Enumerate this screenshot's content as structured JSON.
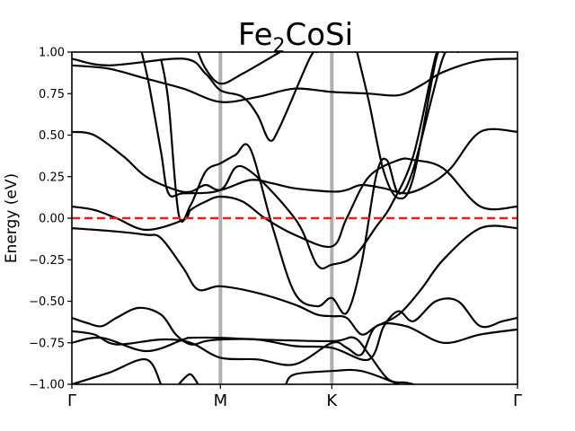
{
  "chart_data": {
    "type": "line",
    "title_main": "Fe",
    "title_sub": "2",
    "title_rest": "CoSi",
    "xlabel": "",
    "ylabel": "Energy (eV)",
    "ylim": [
      -1.0,
      1.0
    ],
    "xlim": [
      0,
      3.0
    ],
    "y_ticks": [
      -1.0,
      -0.75,
      -0.5,
      -0.25,
      0.0,
      0.25,
      0.5,
      0.75,
      1.0
    ],
    "y_tick_labels": [
      "−1.00",
      "−0.75",
      "−0.50",
      "−0.25",
      "0.00",
      "0.25",
      "0.50",
      "0.75",
      "1.00"
    ],
    "x_ticks": [
      {
        "pos": 0.0,
        "label": "Γ"
      },
      {
        "pos": 1.0,
        "label": "M"
      },
      {
        "pos": 1.75,
        "label": "K"
      },
      {
        "pos": 3.0,
        "label": "Γ"
      }
    ],
    "fermi_level": 0.0,
    "colors": {
      "bands": "#000000",
      "fermi": "#e8201c",
      "symmetry_lines": "#b0b0b0"
    },
    "series": [
      {
        "name": "band-1",
        "points": [
          [
            0,
            -1.0
          ],
          [
            0.25,
            -0.93
          ],
          [
            0.5,
            -0.85
          ],
          [
            0.6,
            -1.0
          ]
        ]
      },
      {
        "name": "band-2",
        "points": [
          [
            0.72,
            -1.0
          ],
          [
            0.75,
            -0.97
          ],
          [
            0.8,
            -0.94
          ],
          [
            0.85,
            -1.0
          ]
        ]
      },
      {
        "name": "band-3",
        "points": [
          [
            1.44,
            -1.0
          ],
          [
            1.5,
            -0.94
          ],
          [
            1.75,
            -0.92
          ],
          [
            1.95,
            -0.92
          ],
          [
            2.2,
            -1.0
          ]
        ]
      },
      {
        "name": "band-4",
        "points": [
          [
            0,
            -0.75
          ],
          [
            0.2,
            -0.72
          ],
          [
            0.5,
            -0.8
          ],
          [
            0.75,
            -0.73
          ],
          [
            0.8,
            -0.72
          ],
          [
            1.0,
            -0.72
          ],
          [
            1.25,
            -0.73
          ],
          [
            1.75,
            -0.74
          ],
          [
            1.9,
            -0.72
          ],
          [
            2.0,
            -0.82
          ],
          [
            2.13,
            -0.97
          ],
          [
            2.25,
            -0.99
          ],
          [
            2.3,
            -1.0
          ]
        ]
      },
      {
        "name": "band-5",
        "points": [
          [
            0,
            -0.68
          ],
          [
            0.15,
            -0.7
          ],
          [
            0.3,
            -0.76
          ],
          [
            0.6,
            -0.73
          ],
          [
            0.8,
            -0.75
          ],
          [
            1.0,
            -0.84
          ],
          [
            1.25,
            -0.85
          ],
          [
            1.5,
            -0.88
          ],
          [
            1.75,
            -0.75
          ],
          [
            1.85,
            -0.78
          ],
          [
            1.95,
            -0.82
          ],
          [
            2.05,
            -0.65
          ],
          [
            2.25,
            -0.65
          ],
          [
            2.5,
            -0.75
          ],
          [
            2.75,
            -0.7
          ],
          [
            3.0,
            -0.67
          ]
        ]
      },
      {
        "name": "band-6",
        "points": [
          [
            0,
            -0.6
          ],
          [
            0.1,
            -0.63
          ],
          [
            0.2,
            -0.65
          ],
          [
            0.3,
            -0.6
          ],
          [
            0.45,
            -0.54
          ],
          [
            0.6,
            -0.58
          ],
          [
            0.7,
            -0.7
          ],
          [
            0.8,
            -0.76
          ],
          [
            0.9,
            -0.74
          ],
          [
            1.0,
            -0.73
          ],
          [
            1.25,
            -0.73
          ],
          [
            1.5,
            -0.77
          ],
          [
            1.75,
            -0.78
          ],
          [
            2.0,
            -0.85
          ],
          [
            2.1,
            -0.65
          ],
          [
            2.2,
            -0.56
          ],
          [
            2.3,
            -0.62
          ],
          [
            2.45,
            -0.5
          ],
          [
            2.6,
            -0.5
          ],
          [
            2.75,
            -0.65
          ],
          [
            2.9,
            -0.62
          ],
          [
            3.0,
            -0.6
          ]
        ]
      },
      {
        "name": "band-7",
        "points": [
          [
            0,
            -0.06
          ],
          [
            0.3,
            -0.08
          ],
          [
            0.5,
            -0.1
          ],
          [
            0.6,
            -0.12
          ],
          [
            0.75,
            -0.3
          ],
          [
            0.85,
            -0.43
          ],
          [
            1.0,
            -0.41
          ],
          [
            1.25,
            -0.45
          ],
          [
            1.5,
            -0.52
          ],
          [
            1.65,
            -0.58
          ],
          [
            1.75,
            -0.59
          ],
          [
            1.85,
            -0.6
          ],
          [
            1.95,
            -0.7
          ],
          [
            2.05,
            -0.65
          ],
          [
            2.2,
            -0.58
          ],
          [
            2.35,
            -0.43
          ],
          [
            2.5,
            -0.25
          ],
          [
            2.75,
            -0.06
          ],
          [
            3.0,
            -0.06
          ]
        ]
      },
      {
        "name": "band-8",
        "points": [
          [
            0,
            0.07
          ],
          [
            0.15,
            0.05
          ],
          [
            0.3,
            0.0
          ],
          [
            0.5,
            -0.07
          ],
          [
            0.75,
            -0.01
          ],
          [
            0.8,
            0.05
          ],
          [
            0.9,
            0.1
          ],
          [
            1.0,
            0.13
          ],
          [
            1.15,
            0.1
          ],
          [
            1.3,
            0.0
          ],
          [
            1.5,
            -0.1
          ],
          [
            1.75,
            -0.17
          ],
          [
            1.85,
            0.0
          ],
          [
            2.0,
            0.25
          ],
          [
            2.2,
            0.35
          ],
          [
            2.3,
            0.35
          ],
          [
            2.5,
            0.3
          ],
          [
            2.75,
            0.07
          ],
          [
            3.0,
            0.07
          ]
        ]
      },
      {
        "name": "band-9",
        "points": [
          [
            0,
            0.52
          ],
          [
            0.15,
            0.5
          ],
          [
            0.35,
            0.37
          ],
          [
            0.5,
            0.25
          ],
          [
            0.7,
            0.17
          ],
          [
            0.8,
            0.16
          ],
          [
            0.9,
            0.2
          ],
          [
            1.0,
            0.17
          ],
          [
            1.2,
            0.23
          ],
          [
            1.35,
            0.21
          ],
          [
            1.5,
            0.18
          ],
          [
            1.75,
            0.16
          ],
          [
            1.85,
            0.17
          ],
          [
            1.95,
            0.2
          ],
          [
            2.1,
            0.18
          ],
          [
            2.25,
            0.15
          ],
          [
            2.4,
            0.2
          ],
          [
            2.55,
            0.3
          ],
          [
            2.75,
            0.52
          ],
          [
            3.0,
            0.52
          ]
        ]
      },
      {
        "name": "band-10",
        "points": [
          [
            0.47,
            1.0
          ],
          [
            0.52,
            0.8
          ],
          [
            0.6,
            0.4
          ],
          [
            0.65,
            0.15
          ],
          [
            0.75,
            0.15
          ],
          [
            1.0,
            0.17
          ],
          [
            1.15,
            0.31
          ],
          [
            1.5,
            0.0
          ],
          [
            1.65,
            -0.28
          ],
          [
            1.75,
            -0.28
          ],
          [
            1.9,
            -0.23
          ],
          [
            2.05,
            -0.05
          ],
          [
            2.15,
            0.08
          ],
          [
            2.3,
            0.38
          ],
          [
            2.45,
            0.98
          ],
          [
            2.5,
            1.0
          ]
        ]
      },
      {
        "name": "band-11",
        "points": [
          [
            0.85,
            1.0
          ],
          [
            0.9,
            0.9
          ],
          [
            1.0,
            0.81
          ],
          [
            1.15,
            0.87
          ],
          [
            1.4,
            1.0
          ]
        ]
      },
      {
        "name": "band-12",
        "points": [
          [
            0,
            0.92
          ],
          [
            0.25,
            0.9
          ],
          [
            0.5,
            0.84
          ],
          [
            0.75,
            0.78
          ],
          [
            1.0,
            0.7
          ],
          [
            1.25,
            0.73
          ],
          [
            1.5,
            0.78
          ],
          [
            1.75,
            0.76
          ],
          [
            2.0,
            0.75
          ],
          [
            2.2,
            0.74
          ],
          [
            2.35,
            0.8
          ],
          [
            2.5,
            0.88
          ],
          [
            2.75,
            0.95
          ],
          [
            3.0,
            0.96
          ]
        ]
      },
      {
        "name": "band-13",
        "points": [
          [
            0,
            0.96
          ],
          [
            0.25,
            0.92
          ],
          [
            0.75,
            0.96
          ],
          [
            0.9,
            0.87
          ],
          [
            1.0,
            0.77
          ],
          [
            1.15,
            0.73
          ],
          [
            1.25,
            0.62
          ],
          [
            1.33,
            0.47
          ],
          [
            1.4,
            0.55
          ],
          [
            1.6,
            0.96
          ],
          [
            1.65,
            1.0
          ]
        ]
      },
      {
        "name": "band-14",
        "points": [
          [
            0.6,
            0.96
          ],
          [
            0.65,
            0.7
          ],
          [
            0.72,
            0.02
          ],
          [
            0.8,
            0.08
          ],
          [
            0.9,
            0.28
          ],
          [
            1.0,
            0.33
          ],
          [
            1.1,
            0.38
          ],
          [
            1.2,
            0.42
          ],
          [
            1.35,
            -0.05
          ],
          [
            1.5,
            -0.45
          ],
          [
            1.65,
            -0.53
          ],
          [
            1.75,
            -0.48
          ],
          [
            1.85,
            -0.57
          ],
          [
            1.95,
            -0.27
          ],
          [
            2.05,
            0.26
          ],
          [
            2.12,
            0.35
          ],
          [
            2.2,
            0.15
          ],
          [
            2.3,
            0.3
          ],
          [
            2.5,
            0.97
          ],
          [
            2.6,
            1.0
          ]
        ]
      },
      {
        "name": "band-15",
        "points": [
          [
            1.92,
            1.0
          ],
          [
            2.0,
            0.7
          ],
          [
            2.1,
            0.28
          ],
          [
            2.2,
            0.12
          ],
          [
            2.3,
            0.25
          ],
          [
            2.45,
            0.95
          ],
          [
            2.5,
            1.0
          ]
        ]
      }
    ]
  }
}
